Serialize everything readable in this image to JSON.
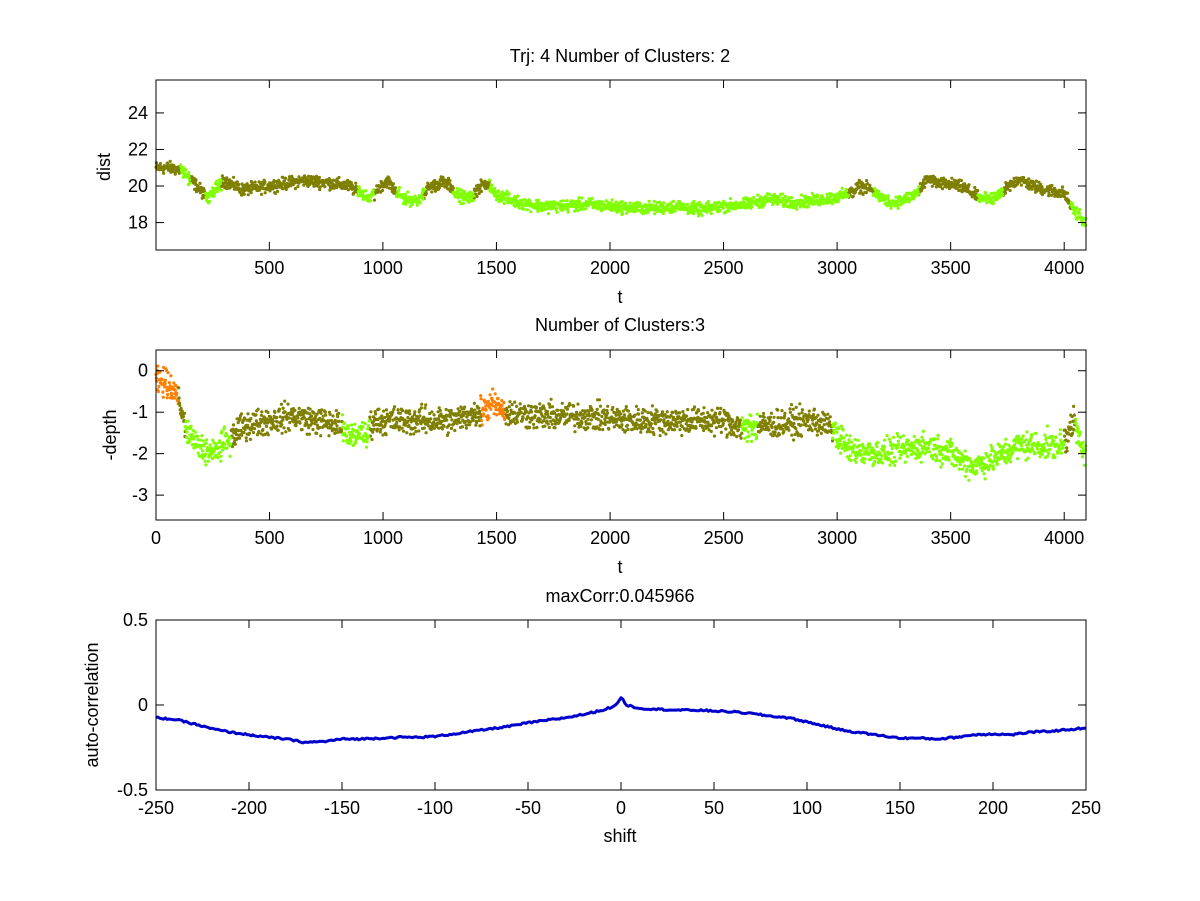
{
  "figure": {
    "background": "#ffffff",
    "axis_color": "#000000"
  },
  "chart_data": [
    {
      "type": "scatter",
      "title": "Trj: 4 Number of Clusters: 2",
      "xlabel": "t",
      "ylabel": "dist",
      "xlim": [
        1,
        4096
      ],
      "ylim": [
        16.5,
        25.8
      ],
      "xticks": [
        500,
        1000,
        1500,
        2000,
        2500,
        3000,
        3500,
        4000
      ],
      "yticks": [
        18,
        20,
        22,
        24
      ],
      "legend": "none",
      "grid": false,
      "series": [
        {
          "color": "#7f7f00",
          "segments": [
            [
              1,
              110
            ],
            [
              150,
              220
            ],
            [
              290,
              890
            ],
            [
              960,
              1060
            ],
            [
              1180,
              1310
            ],
            [
              1400,
              1470
            ],
            [
              3050,
              3160
            ],
            [
              3360,
              3620
            ],
            [
              3730,
              4030
            ]
          ]
        },
        {
          "color": "#80ff00",
          "segments": [
            [
              110,
              150
            ],
            [
              220,
              290
            ],
            [
              890,
              960
            ],
            [
              1060,
              1180
            ],
            [
              1310,
              1400
            ],
            [
              1470,
              3050
            ],
            [
              3160,
              3360
            ],
            [
              3620,
              3730
            ],
            [
              4030,
              4096
            ]
          ]
        }
      ],
      "profile": [
        [
          1,
          21.0
        ],
        [
          60,
          21.0
        ],
        [
          100,
          20.9
        ],
        [
          120,
          20.8
        ],
        [
          180,
          20.0
        ],
        [
          230,
          19.3
        ],
        [
          260,
          19.8
        ],
        [
          300,
          20.3
        ],
        [
          350,
          20.0
        ],
        [
          380,
          19.8
        ],
        [
          450,
          19.9
        ],
        [
          550,
          20.1
        ],
        [
          650,
          20.3
        ],
        [
          750,
          20.2
        ],
        [
          850,
          20.0
        ],
        [
          900,
          19.6
        ],
        [
          940,
          19.3
        ],
        [
          980,
          19.9
        ],
        [
          1020,
          20.3
        ],
        [
          1060,
          19.6
        ],
        [
          1100,
          19.3
        ],
        [
          1150,
          19.2
        ],
        [
          1200,
          19.9
        ],
        [
          1260,
          20.2
        ],
        [
          1300,
          20.0
        ],
        [
          1330,
          19.5
        ],
        [
          1380,
          19.3
        ],
        [
          1420,
          19.9
        ],
        [
          1460,
          20.2
        ],
        [
          1490,
          19.6
        ],
        [
          1550,
          19.3
        ],
        [
          1600,
          19.1
        ],
        [
          1700,
          18.9
        ],
        [
          1800,
          18.9
        ],
        [
          1900,
          19.0
        ],
        [
          2000,
          18.9
        ],
        [
          2100,
          18.8
        ],
        [
          2200,
          18.8
        ],
        [
          2300,
          18.9
        ],
        [
          2400,
          18.7
        ],
        [
          2500,
          18.9
        ],
        [
          2600,
          19.0
        ],
        [
          2700,
          19.3
        ],
        [
          2800,
          19.1
        ],
        [
          2900,
          19.2
        ],
        [
          3000,
          19.4
        ],
        [
          3060,
          19.6
        ],
        [
          3100,
          20.0
        ],
        [
          3150,
          19.8
        ],
        [
          3200,
          19.3
        ],
        [
          3250,
          19.1
        ],
        [
          3300,
          19.3
        ],
        [
          3350,
          19.6
        ],
        [
          3400,
          20.4
        ],
        [
          3450,
          20.1
        ],
        [
          3500,
          20.1
        ],
        [
          3560,
          19.9
        ],
        [
          3620,
          19.4
        ],
        [
          3680,
          19.2
        ],
        [
          3740,
          19.8
        ],
        [
          3800,
          20.4
        ],
        [
          3860,
          20.0
        ],
        [
          3920,
          19.8
        ],
        [
          3960,
          19.7
        ],
        [
          4000,
          19.6
        ],
        [
          4040,
          18.7
        ],
        [
          4096,
          17.9
        ]
      ],
      "noise": 0.28
    },
    {
      "type": "scatter",
      "title": "Number of Clusters:3",
      "xlabel": "t",
      "ylabel": "-depth",
      "xlim": [
        0,
        4096
      ],
      "ylim": [
        -3.6,
        0.5
      ],
      "xticks": [
        0,
        500,
        1000,
        1500,
        2000,
        2500,
        3000,
        3500,
        4000
      ],
      "yticks": [
        -3,
        -2,
        -1,
        0
      ],
      "legend": "none",
      "grid": false,
      "series": [
        {
          "color": "#ff7f00",
          "segments": [
            [
              0,
              100
            ],
            [
              1430,
              1540
            ]
          ]
        },
        {
          "color": "#7f7f00",
          "segments": [
            [
              100,
              130
            ],
            [
              330,
              820
            ],
            [
              940,
              1430
            ],
            [
              1540,
              2580
            ],
            [
              2650,
              2980
            ],
            [
              4000,
              4050
            ]
          ]
        },
        {
          "color": "#80ff00",
          "segments": [
            [
              130,
              330
            ],
            [
              820,
              940
            ],
            [
              2580,
              2650
            ],
            [
              2980,
              4000
            ],
            [
              4050,
              4096
            ]
          ]
        }
      ],
      "profile": [
        [
          0,
          -0.25
        ],
        [
          50,
          -0.3
        ],
        [
          90,
          -0.5
        ],
        [
          130,
          -1.4
        ],
        [
          180,
          -1.8
        ],
        [
          250,
          -2.0
        ],
        [
          330,
          -1.6
        ],
        [
          400,
          -1.3
        ],
        [
          500,
          -1.2
        ],
        [
          600,
          -1.1
        ],
        [
          700,
          -1.2
        ],
        [
          800,
          -1.3
        ],
        [
          850,
          -1.6
        ],
        [
          920,
          -1.5
        ],
        [
          960,
          -1.2
        ],
        [
          1100,
          -1.2
        ],
        [
          1300,
          -1.2
        ],
        [
          1430,
          -1.0
        ],
        [
          1480,
          -0.8
        ],
        [
          1540,
          -1.0
        ],
        [
          1700,
          -1.1
        ],
        [
          1900,
          -1.1
        ],
        [
          2100,
          -1.2
        ],
        [
          2300,
          -1.2
        ],
        [
          2500,
          -1.2
        ],
        [
          2600,
          -1.4
        ],
        [
          2700,
          -1.3
        ],
        [
          2900,
          -1.2
        ],
        [
          2980,
          -1.4
        ],
        [
          3050,
          -1.9
        ],
        [
          3200,
          -2.0
        ],
        [
          3300,
          -1.9
        ],
        [
          3400,
          -1.8
        ],
        [
          3500,
          -2.0
        ],
        [
          3600,
          -2.3
        ],
        [
          3700,
          -2.1
        ],
        [
          3800,
          -1.8
        ],
        [
          3900,
          -1.8
        ],
        [
          4000,
          -1.8
        ],
        [
          4040,
          -1.2
        ],
        [
          4096,
          -2.0
        ]
      ],
      "noise": 0.28
    },
    {
      "type": "line",
      "title": "maxCorr:0.045966",
      "xlabel": "shift",
      "ylabel": "auto-correlation",
      "xlim": [
        -250,
        250
      ],
      "ylim": [
        -0.5,
        0.5
      ],
      "xticks": [
        -250,
        -200,
        -150,
        -100,
        -50,
        0,
        50,
        100,
        150,
        200,
        250
      ],
      "yticks": [
        -0.5,
        0,
        0.5
      ],
      "ytick_labels": [
        "-0.5",
        "0",
        "0.5"
      ],
      "legend": "none",
      "grid": false,
      "series": [
        {
          "color": "#0000cc",
          "x": [
            -250,
            -240,
            -230,
            -220,
            -210,
            -200,
            -190,
            -180,
            -170,
            -160,
            -150,
            -140,
            -130,
            -120,
            -110,
            -100,
            -90,
            -80,
            -70,
            -60,
            -50,
            -40,
            -30,
            -20,
            -10,
            -3,
            0,
            3,
            10,
            20,
            30,
            40,
            50,
            60,
            70,
            80,
            90,
            100,
            110,
            120,
            130,
            140,
            150,
            160,
            170,
            180,
            190,
            200,
            210,
            220,
            230,
            240,
            250
          ],
          "y": [
            -0.075,
            -0.085,
            -0.11,
            -0.14,
            -0.16,
            -0.175,
            -0.19,
            -0.2,
            -0.22,
            -0.215,
            -0.2,
            -0.2,
            -0.195,
            -0.19,
            -0.19,
            -0.185,
            -0.17,
            -0.155,
            -0.14,
            -0.125,
            -0.105,
            -0.09,
            -0.075,
            -0.055,
            -0.03,
            -0.005,
            0.046,
            0.0,
            -0.02,
            -0.025,
            -0.03,
            -0.03,
            -0.035,
            -0.04,
            -0.05,
            -0.065,
            -0.075,
            -0.1,
            -0.125,
            -0.15,
            -0.165,
            -0.18,
            -0.195,
            -0.195,
            -0.2,
            -0.19,
            -0.175,
            -0.17,
            -0.175,
            -0.16,
            -0.155,
            -0.145,
            -0.135
          ]
        }
      ]
    }
  ]
}
